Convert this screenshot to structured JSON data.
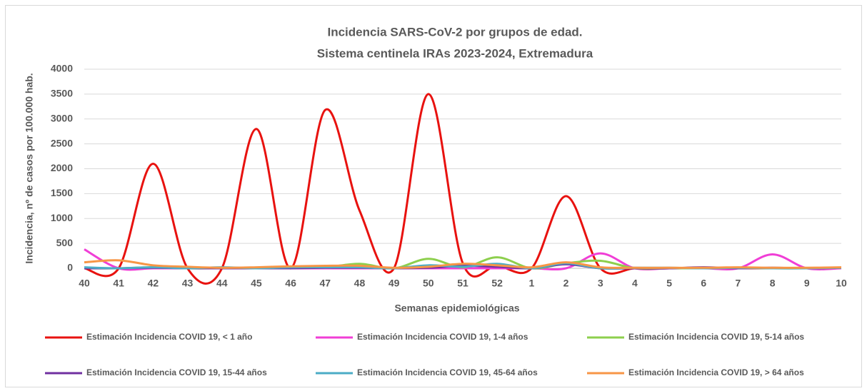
{
  "chart_data": {
    "type": "line",
    "title": [
      "Incidencia SARS-CoV-2 por grupos de edad.",
      "Sistema centinela IRAs 2023-2024, Extremadura"
    ],
    "x_label": "Semanas epidemiológicas",
    "y_label": "Incidencia, nº de casos por 100.000 hab.",
    "categories": [
      "40",
      "41",
      "42",
      "43",
      "44",
      "45",
      "46",
      "47",
      "48",
      "49",
      "50",
      "51",
      "52",
      "1",
      "2",
      "3",
      "4",
      "5",
      "6",
      "7",
      "8",
      "9",
      "10"
    ],
    "ylim": [
      0,
      4000
    ],
    "yticks": [
      0,
      500,
      1000,
      1500,
      2000,
      2500,
      3000,
      3500,
      4000
    ],
    "grid": true,
    "series": [
      {
        "name": "Estimación Incidencia COVID 19, < 1 año",
        "color": "#e8120f",
        "values": [
          0,
          0,
          2100,
          0,
          0,
          2800,
          0,
          3180,
          1160,
          0,
          3500,
          100,
          50,
          0,
          1450,
          0,
          0,
          0,
          0,
          0,
          0,
          0,
          0
        ]
      },
      {
        "name": "Estimación Incidencia COVID 19, 1-4 años",
        "color": "#f03ed6",
        "values": [
          380,
          0,
          0,
          0,
          0,
          0,
          0,
          0,
          0,
          0,
          0,
          0,
          0,
          0,
          0,
          300,
          0,
          0,
          0,
          0,
          280,
          0,
          0
        ]
      },
      {
        "name": "Estimación Incidencia COVID 19, 5-14 años",
        "color": "#8dcf4d",
        "values": [
          0,
          0,
          20,
          0,
          0,
          0,
          10,
          20,
          90,
          0,
          190,
          20,
          220,
          0,
          100,
          150,
          0,
          0,
          0,
          10,
          0,
          0,
          10
        ]
      },
      {
        "name": "Estimación Incidencia COVID 19, 15-44 años",
        "color": "#7030a0",
        "values": [
          0,
          0,
          10,
          0,
          0,
          0,
          0,
          10,
          10,
          0,
          10,
          50,
          30,
          0,
          80,
          0,
          0,
          0,
          20,
          0,
          10,
          0,
          10
        ]
      },
      {
        "name": "Estimación Incidencia COVID 19, 45-64 años",
        "color": "#4bacc6",
        "values": [
          20,
          0,
          20,
          0,
          20,
          0,
          20,
          20,
          20,
          0,
          60,
          30,
          90,
          0,
          100,
          0,
          10,
          10,
          0,
          10,
          0,
          0,
          10
        ]
      },
      {
        "name": "Estimación Incidencia COVID 19, > 64 años",
        "color": "#f79646",
        "values": [
          120,
          160,
          60,
          30,
          10,
          20,
          40,
          50,
          50,
          10,
          30,
          90,
          60,
          20,
          120,
          20,
          10,
          10,
          10,
          20,
          10,
          10,
          20
        ]
      }
    ]
  }
}
